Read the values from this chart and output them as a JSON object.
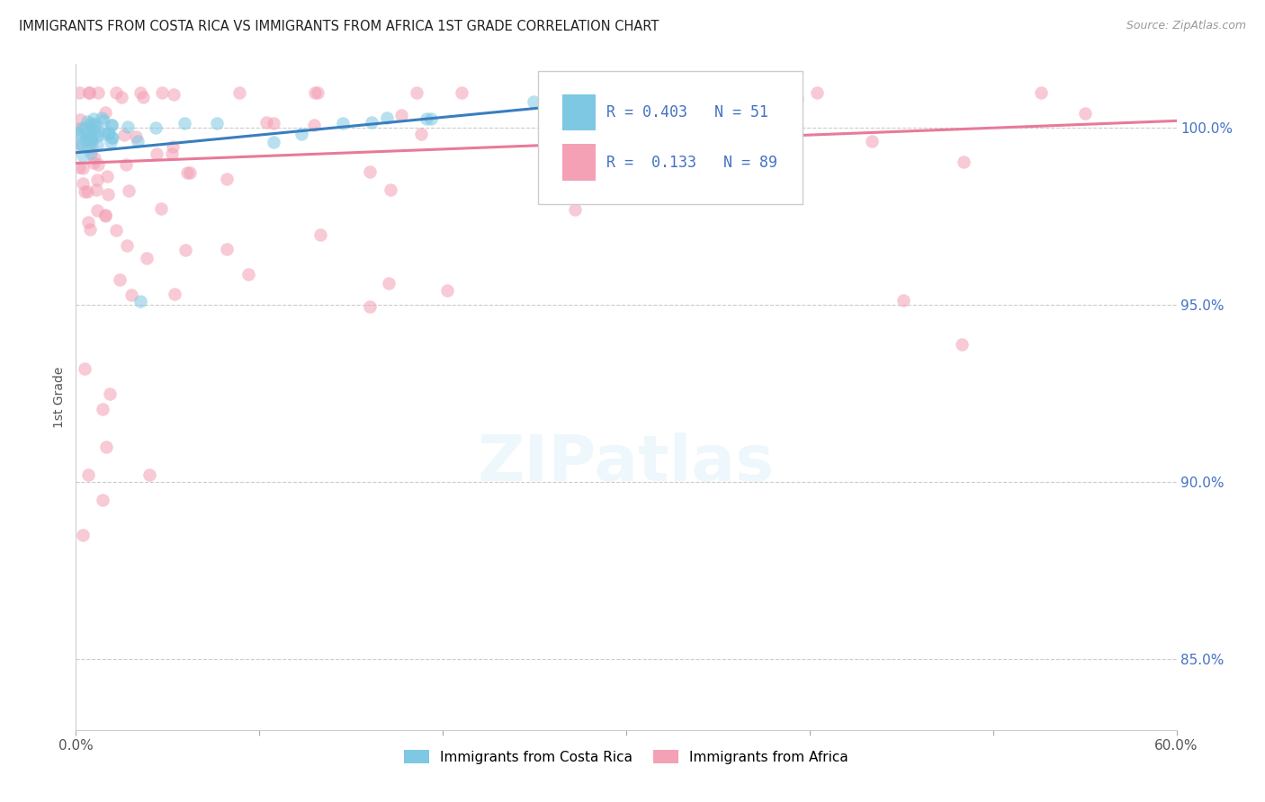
{
  "title": "IMMIGRANTS FROM COSTA RICA VS IMMIGRANTS FROM AFRICA 1ST GRADE CORRELATION CHART",
  "source": "Source: ZipAtlas.com",
  "ylabel": "1st Grade",
  "xlim": [
    0.0,
    60.0
  ],
  "ylim": [
    83.0,
    101.8
  ],
  "yticks": [
    85.0,
    90.0,
    95.0,
    100.0
  ],
  "ytick_labels": [
    "85.0%",
    "90.0%",
    "95.0%",
    "100.0%"
  ],
  "color_blue": "#7ec8e3",
  "color_pink": "#f4a0b5",
  "color_blue_line": "#3a7ebf",
  "color_pink_line": "#e87a99",
  "legend_label1": "Immigrants from Costa Rica",
  "legend_label2": "Immigrants from Africa",
  "legend_r1": "R = 0.403",
  "legend_n1": "N = 51",
  "legend_r2": "R =  0.133",
  "legend_n2": "N = 89",
  "cr_line_x": [
    0.0,
    28.0
  ],
  "cr_line_y": [
    99.3,
    100.7
  ],
  "af_line_x": [
    0.0,
    60.0
  ],
  "af_line_y": [
    99.0,
    100.2
  ]
}
